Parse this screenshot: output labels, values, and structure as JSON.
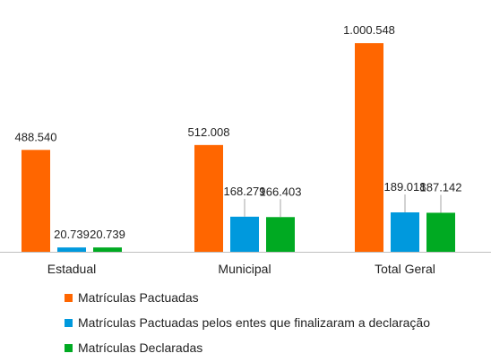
{
  "chart_data": {
    "type": "bar",
    "categories": [
      "Estadual",
      "Municipal",
      "Total Geral"
    ],
    "series": [
      {
        "name": "Matrículas Pactuadas",
        "values": [
          488540,
          512008,
          1000548
        ],
        "labels": [
          "488.540",
          "512.008",
          "1.000.548"
        ],
        "color": "#FF6600"
      },
      {
        "name": "Matrículas Pactuadas pelos entes que finalizaram a declaração",
        "values": [
          20739,
          168279,
          189018
        ],
        "labels": [
          "20.739",
          "168.279",
          "189.018"
        ],
        "color": "#0099DD"
      },
      {
        "name": "Matrículas Declaradas",
        "values": [
          20739,
          166403,
          187142
        ],
        "labels": [
          "20.739",
          "166.403",
          "187.142"
        ],
        "color": "#00AA22"
      }
    ],
    "ylim": [
      0,
      1100000
    ],
    "grid": false,
    "legend_position": "bottom-left"
  }
}
